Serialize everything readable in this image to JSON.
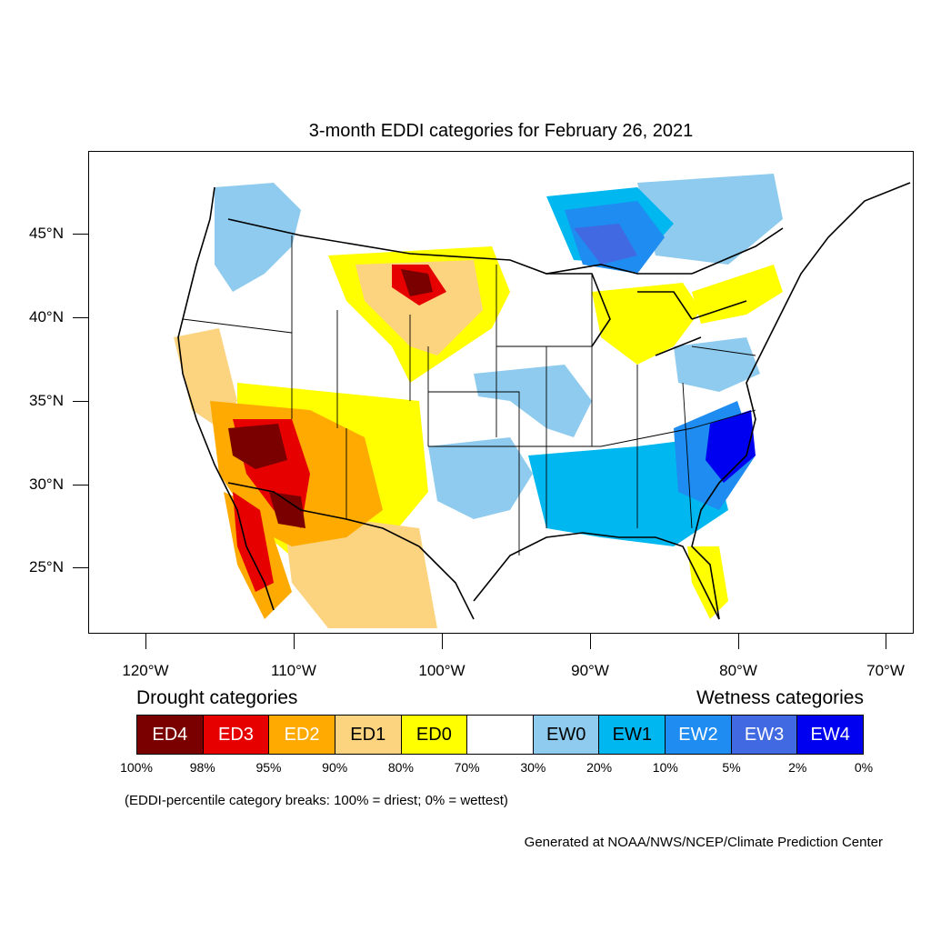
{
  "title": "3-month EDDI categories for February 26, 2021",
  "latitude_labels": [
    "45°N",
    "40°N",
    "35°N",
    "30°N",
    "25°N"
  ],
  "longitude_labels": [
    "120°W",
    "110°W",
    "100°W",
    "90°W",
    "80°W",
    "70°W"
  ],
  "legend": {
    "drought_heading": "Drought categories",
    "wetness_heading": "Wetness categories",
    "categories": [
      {
        "label": "ED4",
        "color": "#7a0000",
        "text_color": "#ffffff"
      },
      {
        "label": "ED3",
        "color": "#e60000",
        "text_color": "#ffffff"
      },
      {
        "label": "ED2",
        "color": "#ffaa00",
        "text_color": "#ffffff"
      },
      {
        "label": "ED1",
        "color": "#fcd37f",
        "text_color": "#000000"
      },
      {
        "label": "ED0",
        "color": "#ffff00",
        "text_color": "#000000"
      },
      {
        "label": "",
        "color": "#ffffff",
        "text_color": "#000000"
      },
      {
        "label": "EW0",
        "color": "#8ecbee",
        "text_color": "#000000"
      },
      {
        "label": "EW1",
        "color": "#00b7f0",
        "text_color": "#000000"
      },
      {
        "label": "EW2",
        "color": "#1e8cf0",
        "text_color": "#ffffff"
      },
      {
        "label": "EW3",
        "color": "#4169e1",
        "text_color": "#ffffff"
      },
      {
        "label": "EW4",
        "color": "#0000f0",
        "text_color": "#ffffff"
      }
    ],
    "breaks": [
      "100%",
      "98%",
      "95%",
      "90%",
      "80%",
      "70%",
      "30%",
      "20%",
      "10%",
      "5%",
      "2%",
      "0%"
    ]
  },
  "footnote": "(EDDI-percentile category breaks: 100% = driest; 0% = wettest)",
  "credit": "Generated at NOAA/NWS/NCEP/Climate Prediction Center"
}
